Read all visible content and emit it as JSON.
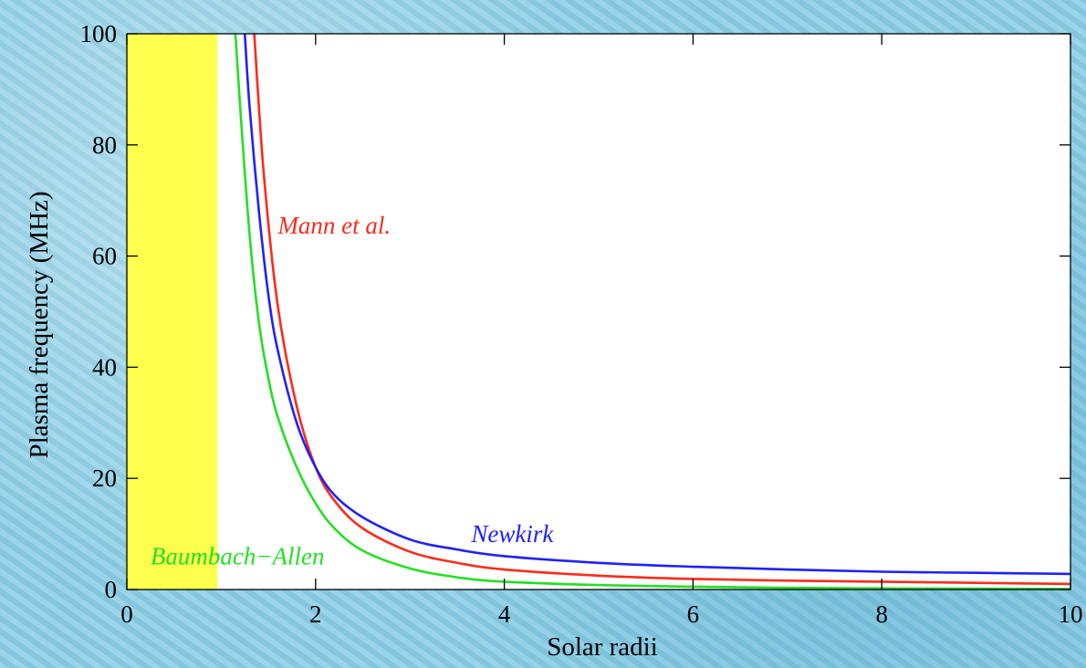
{
  "chart_data": {
    "type": "line",
    "title": "",
    "xlabel": "Solar radii",
    "ylabel": "Plasma frequency (MHz)",
    "xlim": [
      0,
      10
    ],
    "ylim": [
      0,
      100
    ],
    "xticks": [
      "0",
      "2",
      "4",
      "6",
      "8",
      "10"
    ],
    "yticks": [
      "0",
      "20",
      "40",
      "60",
      "80",
      "100"
    ],
    "grid": false,
    "shaded_region": {
      "x": [
        0,
        0.96
      ],
      "color": "#ffff4d"
    },
    "series": [
      {
        "name": "Mann et al.",
        "color": "#ff2a1a",
        "x": [
          1.35,
          1.45,
          1.6,
          1.8,
          2.0,
          2.2,
          2.5,
          3.0,
          3.5,
          4.0,
          5.0,
          6.0,
          7.0,
          8.0,
          9.0,
          10.0
        ],
        "y": [
          100,
          75,
          51,
          33,
          22,
          16,
          11,
          6.8,
          4.8,
          3.6,
          2.5,
          1.9,
          1.6,
          1.4,
          1.2,
          1.0
        ]
      },
      {
        "name": "Newkirk",
        "color": "#2020ff",
        "x": [
          1.25,
          1.3,
          1.4,
          1.5,
          1.6,
          1.8,
          2.0,
          2.2,
          2.5,
          3.0,
          3.5,
          4.0,
          5.0,
          6.0,
          7.0,
          8.0,
          9.0,
          10.0
        ],
        "y": [
          100,
          87,
          68,
          53,
          43,
          30,
          22,
          17,
          13,
          9,
          7.2,
          6,
          4.8,
          4.1,
          3.6,
          3.2,
          3.0,
          2.8
        ]
      },
      {
        "name": "Baumbach−Allen",
        "color": "#22e022",
        "x": [
          1.15,
          1.2,
          1.3,
          1.4,
          1.5,
          1.6,
          1.8,
          2.0,
          2.2,
          2.5,
          3.0,
          3.5,
          4.0,
          5.0,
          6.0,
          7.0,
          8.0,
          9.0,
          10.0
        ],
        "y": [
          100,
          87,
          64,
          48,
          38,
          31,
          22,
          15.5,
          11,
          7,
          3.8,
          2.2,
          1.4,
          0.8,
          0.5,
          0.3,
          0.2,
          0.15,
          0.1
        ]
      }
    ],
    "annotations": [
      {
        "text": "Mann et al.",
        "x": 1.6,
        "y": 64,
        "color": "#ff2a1a"
      },
      {
        "text": "Newkirk",
        "x": 3.65,
        "y": 8.5,
        "color": "#2020ff"
      },
      {
        "text": "Baumbach−Allen",
        "x": 0.25,
        "y": 4.5,
        "color": "#22e022"
      }
    ]
  }
}
